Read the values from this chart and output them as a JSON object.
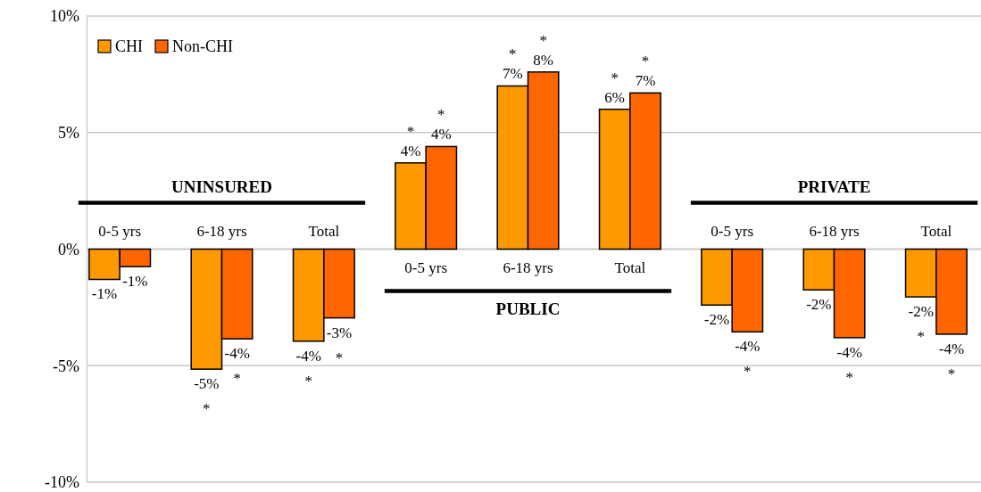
{
  "chart_data": {
    "type": "bar",
    "categories": [
      "0-5 yrs",
      "6-18 yrs",
      "Total",
      "0-5 yrs",
      "6-18 yrs",
      "Total",
      "0-5 yrs",
      "6-18 yrs",
      "Total"
    ],
    "series": [
      {
        "name": "CHI",
        "color": "#ff9900",
        "values": [
          -1.3,
          -5.15,
          -3.95,
          3.7,
          7.0,
          6.0,
          -2.4,
          -1.75,
          -2.05
        ],
        "value_labels": [
          "-1%",
          "-5%\n*",
          "-4%\n*",
          "*\n4%",
          "*\n7%",
          "*\n6%",
          "-2%",
          "-2%",
          "-2%\n*"
        ]
      },
      {
        "name": "Non-CHI",
        "color": "#ff6600",
        "values": [
          -0.75,
          -3.85,
          -2.95,
          4.4,
          7.6,
          6.7,
          -3.55,
          -3.8,
          -3.65
        ],
        "value_labels": [
          "-1%",
          "-4%\n*",
          "-3%\n*",
          "*\n4%",
          "*\n8%",
          "*\n7%",
          "-4%\n*",
          "-4%\n*",
          "-4%\n*"
        ]
      }
    ],
    "annotations": [
      "UNINSURED",
      "PUBLIC",
      "PRIVATE"
    ],
    "ylim": [
      -10,
      10
    ],
    "yticks": [
      {
        "value": 10,
        "label": "10%"
      },
      {
        "value": 5,
        "label": "5%"
      },
      {
        "value": 0,
        "label": "0%"
      },
      {
        "value": -5,
        "label": "-5%"
      },
      {
        "value": -10,
        "label": "-10%"
      }
    ],
    "grid": "y",
    "legend": "top left"
  }
}
